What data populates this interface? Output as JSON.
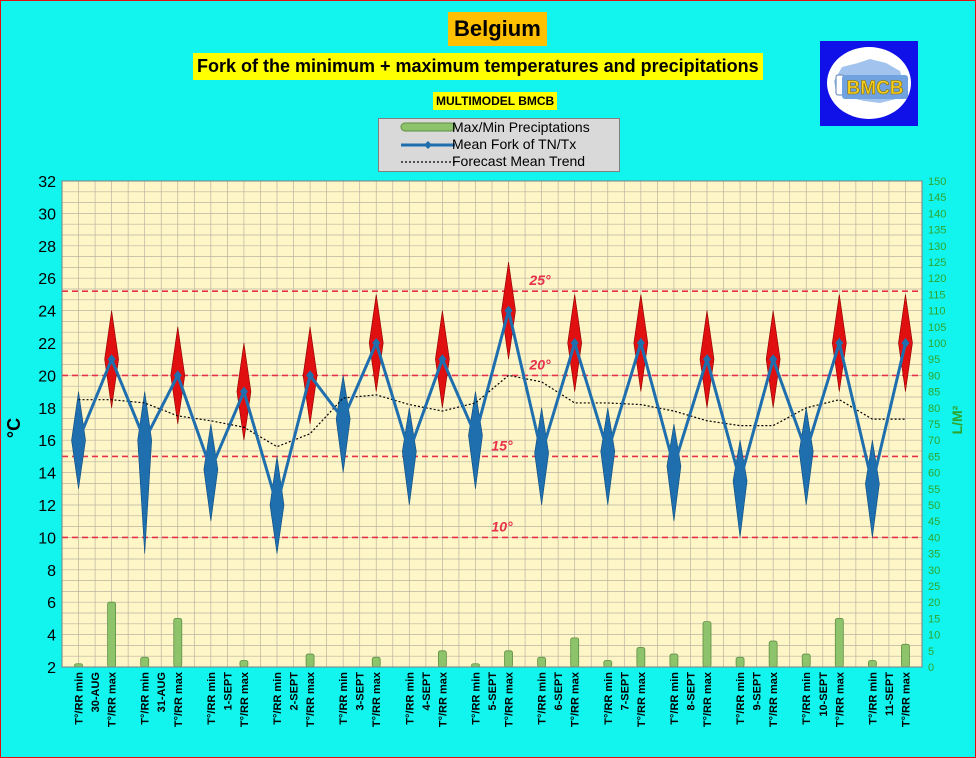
{
  "title": "Belgium",
  "subtitle": "Fork of the minimum + maximum temperatures and precipitations",
  "model_label": "MULTIMODEL BMCB",
  "logo_text": "BMCB",
  "legend": {
    "precip": "Max/Min Preciptations",
    "mean": "Mean Fork of TN/Tx",
    "trend": "Forecast Mean Trend"
  },
  "colors": {
    "background": "#12F5EE",
    "plot_area": "#FFF6C8",
    "temp_line": "#1F6FAE",
    "max_marker": "#E01010",
    "precip_bar": "#8DC36B",
    "ref_line": "#E8304A",
    "y2_label": "#2EA52E"
  },
  "chart_data": {
    "type": "line",
    "ylabel": "°C",
    "y2label": "L/M²",
    "ylim": [
      2,
      32
    ],
    "y2lim": [
      0,
      150
    ],
    "yticks": [
      "2",
      "4",
      "6",
      "8",
      "10",
      "12",
      "14",
      "16",
      "18",
      "20",
      "22",
      "24",
      "26",
      "28",
      "30",
      "32"
    ],
    "y2ticks": [
      "0",
      "5",
      "10",
      "15",
      "20",
      "25",
      "30",
      "35",
      "40",
      "45",
      "50",
      "55",
      "60",
      "65",
      "70",
      "75",
      "80",
      "85",
      "90",
      "95",
      "100",
      "105",
      "110",
      "115",
      "120",
      "125",
      "130",
      "135",
      "140",
      "145",
      "150"
    ],
    "categories": [
      "T°/RR min",
      "T°/RR max",
      "T°/RR min",
      "T°/RR max",
      "T°/RR min",
      "T°/RR max",
      "T°/RR min",
      "T°/RR max",
      "T°/RR min",
      "T°/RR max",
      "T°/RR min",
      "T°/RR max",
      "T°/RR min",
      "T°/RR max",
      "T°/RR min",
      "T°/RR max",
      "T°/RR min",
      "T°/RR max",
      "T°/RR min",
      "T°/RR max",
      "T°/RR min",
      "T°/RR max",
      "T°/RR min",
      "T°/RR max",
      "T°/RR min",
      "T°/RR max"
    ],
    "dates": [
      "30-AUG",
      "31-AUG",
      "1-SEPT",
      "2-SEPT",
      "3-SEPT",
      "4-SEPT",
      "5-SEPT",
      "6-SEPT",
      "7-SEPT",
      "8-SEPT",
      "9-SEPT",
      "10-SEPT",
      "11-SEPT"
    ],
    "series": [
      {
        "name": "Mean Fork of TN/Tx",
        "values": [
          16,
          21,
          16,
          20,
          14.2,
          19,
          12,
          20,
          17.3,
          22,
          15.3,
          21,
          16.3,
          24,
          15.2,
          22,
          15.3,
          22,
          14.4,
          21,
          13.5,
          21,
          15.3,
          22,
          13.3,
          22
        ]
      },
      {
        "name": "Forecast Mean Trend",
        "values": [
          18.5,
          18.5,
          18.3,
          17.5,
          17.2,
          16.8,
          15.6,
          16.4,
          18.6,
          18.8,
          18.2,
          17.8,
          18.3,
          20,
          19.6,
          18.3,
          18.3,
          18.2,
          17.8,
          17.2,
          16.9,
          16.9,
          18,
          18.5,
          17.3,
          17.3
        ]
      },
      {
        "name": "Max/Min Preciptations",
        "axis": "y2",
        "values": [
          1,
          20,
          3,
          15,
          0,
          2,
          0,
          4,
          0,
          3,
          0,
          5,
          1,
          5,
          3,
          9,
          2,
          6,
          4,
          14,
          3,
          8,
          4,
          15,
          2,
          7
        ]
      }
    ],
    "spread": {
      "min_low": [
        13,
        9,
        11,
        9,
        14,
        12,
        13,
        12,
        12,
        11,
        10,
        12,
        10
      ],
      "min_high": [
        19,
        19,
        17,
        15,
        20,
        18,
        19,
        18,
        18,
        17,
        16,
        18,
        16
      ],
      "max_low": [
        18,
        17,
        16,
        17,
        19,
        18,
        21,
        19,
        19,
        18,
        18,
        19,
        19
      ],
      "max_high": [
        24,
        23,
        22,
        23,
        25,
        24,
        27,
        25,
        25,
        24,
        24,
        25,
        25
      ]
    },
    "reference_lines": [
      {
        "value": 25.2,
        "label": "25°"
      },
      {
        "value": 20,
        "label": "20°"
      },
      {
        "value": 15,
        "label": "15°"
      },
      {
        "value": 10,
        "label": "10°"
      }
    ],
    "grid": true
  }
}
